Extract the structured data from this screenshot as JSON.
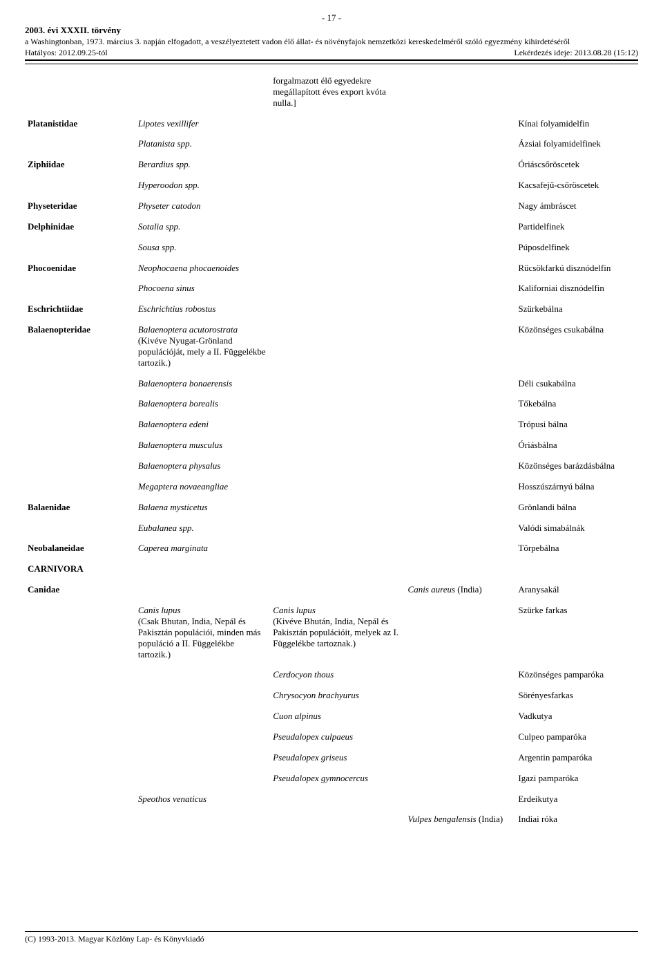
{
  "header": {
    "page": "- 17 -",
    "law_title": "2003. évi XXXII. törvény",
    "subtitle": "a Washingtonban, 1973. március 3. napján elfogadott, a veszélyeztetett vadon élő állat- és növényfajok nemzetközi kereskedelméről szóló egyezmény kihirdetéséről",
    "hatalyos": "Hatályos: 2012.09.25-tól",
    "query": "Lekérdezés ideje: 2013.08.28 (15:12)"
  },
  "intro_note": "forgalmazott élő egyedekre megállapított éves export kvóta nulla.]",
  "rows": [
    {
      "family": "Platanistidae",
      "a": "Lipotes vexillifer",
      "a_ital": true,
      "d": "Kínai folyamidelfin"
    },
    {
      "a": "Platanista spp.",
      "a_ital": true,
      "d": "Ázsiai folyamidelfinek"
    },
    {
      "family": "Ziphiidae",
      "a": "Berardius spp.",
      "a_ital": true,
      "d": "Óriáscsőröscetek"
    },
    {
      "a": "Hyperoodon spp.",
      "a_ital": true,
      "d": "Kacsafejű-csőröscetek"
    },
    {
      "family": "Physeteridae",
      "a": "Physeter catodon",
      "a_ital": true,
      "d": "Nagy ámbráscet"
    },
    {
      "family": "Delphinidae",
      "a": "Sotalia spp.",
      "a_ital": true,
      "d": "Partidelfinek"
    },
    {
      "a": "Sousa spp.",
      "a_ital": true,
      "d": "Púposdelfinek"
    },
    {
      "family": "Phocoenidae",
      "a": "Neophocaena phocaenoides",
      "a_ital": true,
      "d": "Rücsökfarkú disznódelfin"
    },
    {
      "a": "Phocoena sinus",
      "a_ital": true,
      "d": "Kaliforniai disznódelfin"
    },
    {
      "family": "Eschrichtiidae",
      "a": "Eschrichtius robostus",
      "a_ital": true,
      "d": "Szürkebálna"
    },
    {
      "family": "Balaenopteridae",
      "a_html": "<span class='ital'>Balaenoptera acutorostrata</span><br>(Kivéve Nyugat-Grönland populációját, mely a II. Függelékbe tartozik.)",
      "d": "Közönséges csukabálna"
    },
    {
      "a": "Balaenoptera bonaerensis",
      "a_ital": true,
      "d": "Déli csukabálna"
    },
    {
      "a": "Balaenoptera borealis",
      "a_ital": true,
      "d": "Tőkebálna"
    },
    {
      "a": "Balaenoptera edeni",
      "a_ital": true,
      "d": "Trópusi bálna"
    },
    {
      "a": "Balaenoptera musculus",
      "a_ital": true,
      "d": "Óriásbálna"
    },
    {
      "a": "Balaenoptera physalus",
      "a_ital": true,
      "d": "Közönséges barázdásbálna"
    },
    {
      "a": "Megaptera novaeangliae",
      "a_ital": true,
      "d": "Hosszúszárnyú bálna"
    },
    {
      "family": "Balaenidae",
      "a": "Balaena mysticetus",
      "a_ital": true,
      "d": "Grönlandi bálna"
    },
    {
      "a": "Eubalanea spp.",
      "a_ital": true,
      "d": "Valódi simabálnák"
    },
    {
      "family": "Neobalaneidae",
      "a": "Caperea marginata",
      "a_ital": true,
      "d": "Törpebálna"
    },
    {
      "family": "CARNIVORA"
    },
    {
      "family": "Canidae",
      "c_html": "<span class='ital'>Canis aureus</span> (India)",
      "d": "Aranysakál"
    },
    {
      "a_html": "<span class='ital'>Canis lupus</span><br>(Csak Bhutan, India, Nepál és Pakisztán populációi, minden más populáció a II. Függelékbe tartozik.)",
      "b_html": "<span class='ital'>Canis lupus</span><br>(Kivéve Bhután, India, Nepál és Pakisztán populációit, melyek az I. Függelékbe tartoznak.)",
      "d": "Szürke farkas"
    },
    {
      "b": "Cerdocyon thous",
      "b_ital": true,
      "d": "Közönséges pamparóka"
    },
    {
      "b": "Chrysocyon brachyurus",
      "b_ital": true,
      "d": "Sörényesfarkas"
    },
    {
      "b": "Cuon alpinus",
      "b_ital": true,
      "d": "Vadkutya"
    },
    {
      "b": "Pseudalopex culpaeus",
      "b_ital": true,
      "d": "Culpeo pamparóka"
    },
    {
      "b": "Pseudalopex griseus",
      "b_ital": true,
      "d": "Argentin pamparóka"
    },
    {
      "b": "Pseudalopex gymnocercus",
      "b_ital": true,
      "d": "Igazi pamparóka"
    },
    {
      "a": "Speothos venaticus",
      "a_ital": true,
      "d": "Erdeikutya"
    },
    {
      "c_html": "<span class='ital'>Vulpes bengalensis</span> (India)",
      "d": "Indiai róka"
    }
  ],
  "footer": "(C) 1993-2013. Magyar Közlöny Lap- és Könyvkiadó"
}
